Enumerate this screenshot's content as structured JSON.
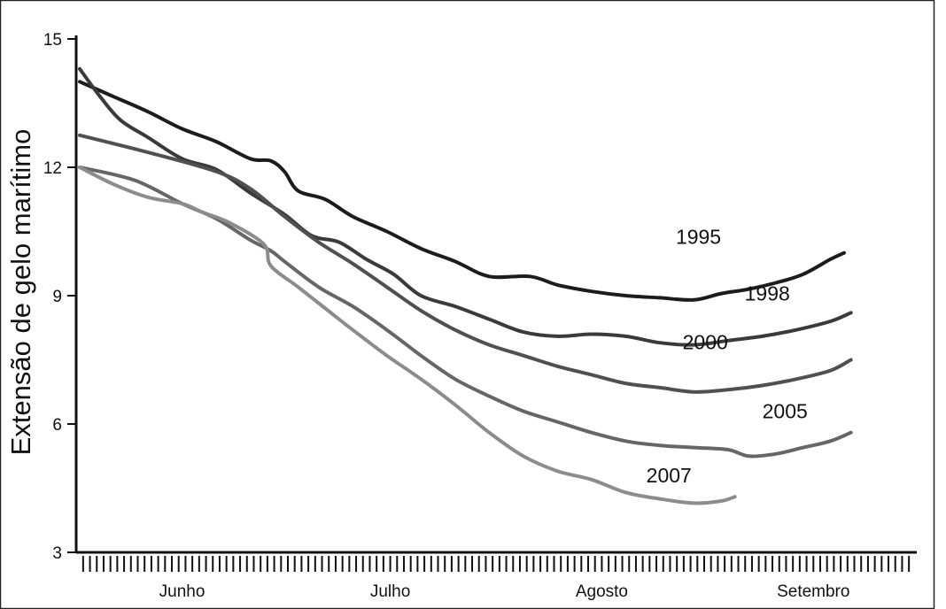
{
  "chart_data": {
    "type": "line",
    "title": "",
    "ylabel": "Extensão de gelo marítimo",
    "xlabel": "",
    "ylim": [
      3,
      15
    ],
    "yticks": [
      3,
      6,
      9,
      12,
      15
    ],
    "x_unit": "day index (Jun 1 = 0)",
    "xlim": [
      0,
      122
    ],
    "months": [
      {
        "label": "Junho",
        "center": 15
      },
      {
        "label": "Julho",
        "center": 45.5
      },
      {
        "label": "Agosto",
        "center": 76.5
      },
      {
        "label": "Setembro",
        "center": 107.5
      }
    ],
    "grid": false,
    "series": [
      {
        "name": "1995",
        "color": "#1c1c1c",
        "points": [
          [
            0,
            14.0
          ],
          [
            5,
            13.65
          ],
          [
            10,
            13.3
          ],
          [
            15,
            12.9
          ],
          [
            20,
            12.6
          ],
          [
            25,
            12.2
          ],
          [
            28,
            12.15
          ],
          [
            30,
            11.9
          ],
          [
            32,
            11.45
          ],
          [
            36,
            11.25
          ],
          [
            40,
            10.85
          ],
          [
            45,
            10.5
          ],
          [
            50,
            10.1
          ],
          [
            55,
            9.8
          ],
          [
            60,
            9.45
          ],
          [
            66,
            9.45
          ],
          [
            70,
            9.25
          ],
          [
            75,
            9.1
          ],
          [
            80,
            9.0
          ],
          [
            85,
            8.95
          ],
          [
            90,
            8.9
          ],
          [
            94,
            9.05
          ],
          [
            98,
            9.15
          ],
          [
            102,
            9.3
          ],
          [
            106,
            9.5
          ],
          [
            110,
            9.85
          ],
          [
            112,
            10.0
          ]
        ]
      },
      {
        "name": "1998",
        "color": "#3a3a3a",
        "points": [
          [
            0,
            14.3
          ],
          [
            3,
            13.65
          ],
          [
            6,
            13.1
          ],
          [
            10,
            12.7
          ],
          [
            15,
            12.2
          ],
          [
            20,
            11.95
          ],
          [
            25,
            11.4
          ],
          [
            30,
            10.9
          ],
          [
            34,
            10.4
          ],
          [
            38,
            10.25
          ],
          [
            42,
            9.85
          ],
          [
            46,
            9.5
          ],
          [
            50,
            9.0
          ],
          [
            55,
            8.75
          ],
          [
            60,
            8.45
          ],
          [
            65,
            8.15
          ],
          [
            70,
            8.05
          ],
          [
            75,
            8.1
          ],
          [
            80,
            8.05
          ],
          [
            85,
            7.9
          ],
          [
            90,
            7.85
          ],
          [
            95,
            7.95
          ],
          [
            100,
            8.05
          ],
          [
            105,
            8.2
          ],
          [
            110,
            8.4
          ],
          [
            113,
            8.6
          ]
        ]
      },
      {
        "name": "2000",
        "color": "#505050",
        "points": [
          [
            0,
            12.75
          ],
          [
            10,
            12.35
          ],
          [
            20,
            11.9
          ],
          [
            25,
            11.5
          ],
          [
            30,
            10.85
          ],
          [
            35,
            10.25
          ],
          [
            40,
            9.75
          ],
          [
            45,
            9.2
          ],
          [
            50,
            8.65
          ],
          [
            55,
            8.2
          ],
          [
            60,
            7.85
          ],
          [
            65,
            7.6
          ],
          [
            70,
            7.35
          ],
          [
            75,
            7.15
          ],
          [
            80,
            6.95
          ],
          [
            85,
            6.85
          ],
          [
            90,
            6.75
          ],
          [
            95,
            6.8
          ],
          [
            100,
            6.9
          ],
          [
            105,
            7.05
          ],
          [
            110,
            7.25
          ],
          [
            113,
            7.5
          ]
        ]
      },
      {
        "name": "2005",
        "color": "#666666",
        "points": [
          [
            0,
            12.0
          ],
          [
            8,
            11.7
          ],
          [
            15,
            11.15
          ],
          [
            20,
            10.8
          ],
          [
            25,
            10.3
          ],
          [
            28,
            10.05
          ],
          [
            30,
            9.8
          ],
          [
            35,
            9.2
          ],
          [
            40,
            8.75
          ],
          [
            45,
            8.2
          ],
          [
            50,
            7.6
          ],
          [
            55,
            7.05
          ],
          [
            60,
            6.65
          ],
          [
            65,
            6.3
          ],
          [
            70,
            6.05
          ],
          [
            75,
            5.8
          ],
          [
            80,
            5.6
          ],
          [
            85,
            5.5
          ],
          [
            90,
            5.45
          ],
          [
            95,
            5.4
          ],
          [
            98,
            5.25
          ],
          [
            102,
            5.3
          ],
          [
            106,
            5.45
          ],
          [
            110,
            5.6
          ],
          [
            113,
            5.8
          ]
        ]
      },
      {
        "name": "2007",
        "color": "#8c8c8c",
        "points": [
          [
            0,
            12.0
          ],
          [
            5,
            11.6
          ],
          [
            10,
            11.3
          ],
          [
            15,
            11.15
          ],
          [
            18,
            10.95
          ],
          [
            22,
            10.7
          ],
          [
            27,
            10.2
          ],
          [
            28,
            9.7
          ],
          [
            32,
            9.2
          ],
          [
            36,
            8.7
          ],
          [
            40,
            8.2
          ],
          [
            45,
            7.6
          ],
          [
            50,
            7.05
          ],
          [
            55,
            6.45
          ],
          [
            60,
            5.8
          ],
          [
            65,
            5.25
          ],
          [
            70,
            4.9
          ],
          [
            75,
            4.7
          ],
          [
            80,
            4.4
          ],
          [
            85,
            4.25
          ],
          [
            90,
            4.15
          ],
          [
            94,
            4.2
          ],
          [
            96,
            4.3
          ]
        ]
      }
    ]
  }
}
